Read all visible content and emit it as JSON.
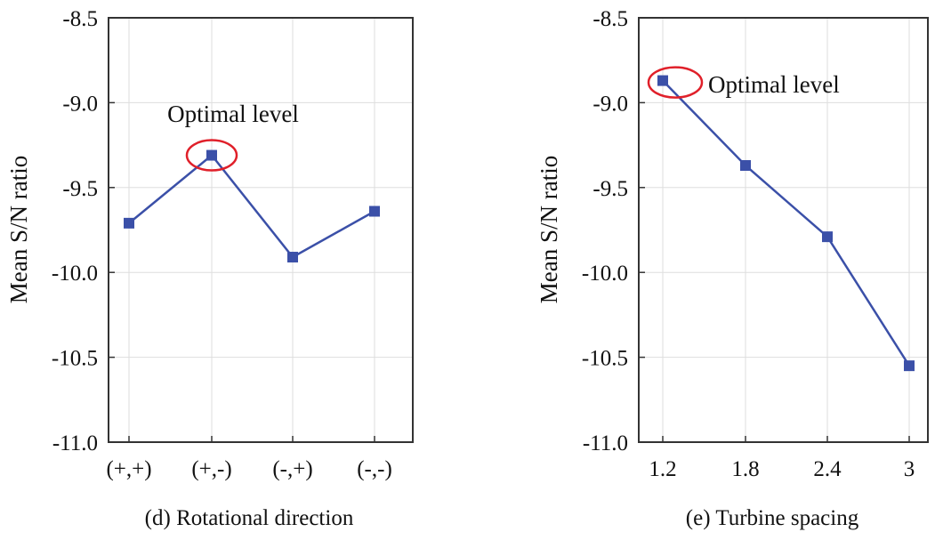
{
  "chart_data": [
    {
      "type": "line",
      "categories": [
        "(+,+)",
        "(+,-)",
        "(-,+)",
        "(-,-)"
      ],
      "values": [
        -9.71,
        -9.31,
        -9.91,
        -9.64
      ],
      "ylabel": "Mean S/N ratio",
      "xlabel": "(d) Rotational direction",
      "ylim": [
        -11.0,
        -8.5
      ],
      "yticks": [
        "-8.5",
        "-9.0",
        "-9.5",
        "-10.0",
        "-10.5",
        "-11.0"
      ],
      "ytick_values": [
        -8.5,
        -9.0,
        -9.5,
        -10.0,
        -10.5,
        -11.0
      ],
      "grid": true,
      "line_color": "#3b50a8",
      "highlight_color": "#e0202a",
      "annotation": {
        "text": "Optimal level",
        "index": 1
      }
    },
    {
      "type": "line",
      "categories": [
        "1.2",
        "1.8",
        "2.4",
        "3"
      ],
      "values": [
        -8.87,
        -9.37,
        -9.79,
        -10.55
      ],
      "ylabel": "Mean S/N ratio",
      "xlabel": "(e) Turbine spacing",
      "ylim": [
        -11.0,
        -8.5
      ],
      "yticks": [
        "-8.5",
        "-9.0",
        "-9.5",
        "-10.0",
        "-10.5",
        "-11.0"
      ],
      "ytick_values": [
        -8.5,
        -9.0,
        -9.5,
        -10.0,
        -10.5,
        -11.0
      ],
      "grid": true,
      "line_color": "#3b50a8",
      "highlight_color": "#e0202a",
      "annotation": {
        "text": "Optimal level",
        "index": 0
      }
    }
  ]
}
